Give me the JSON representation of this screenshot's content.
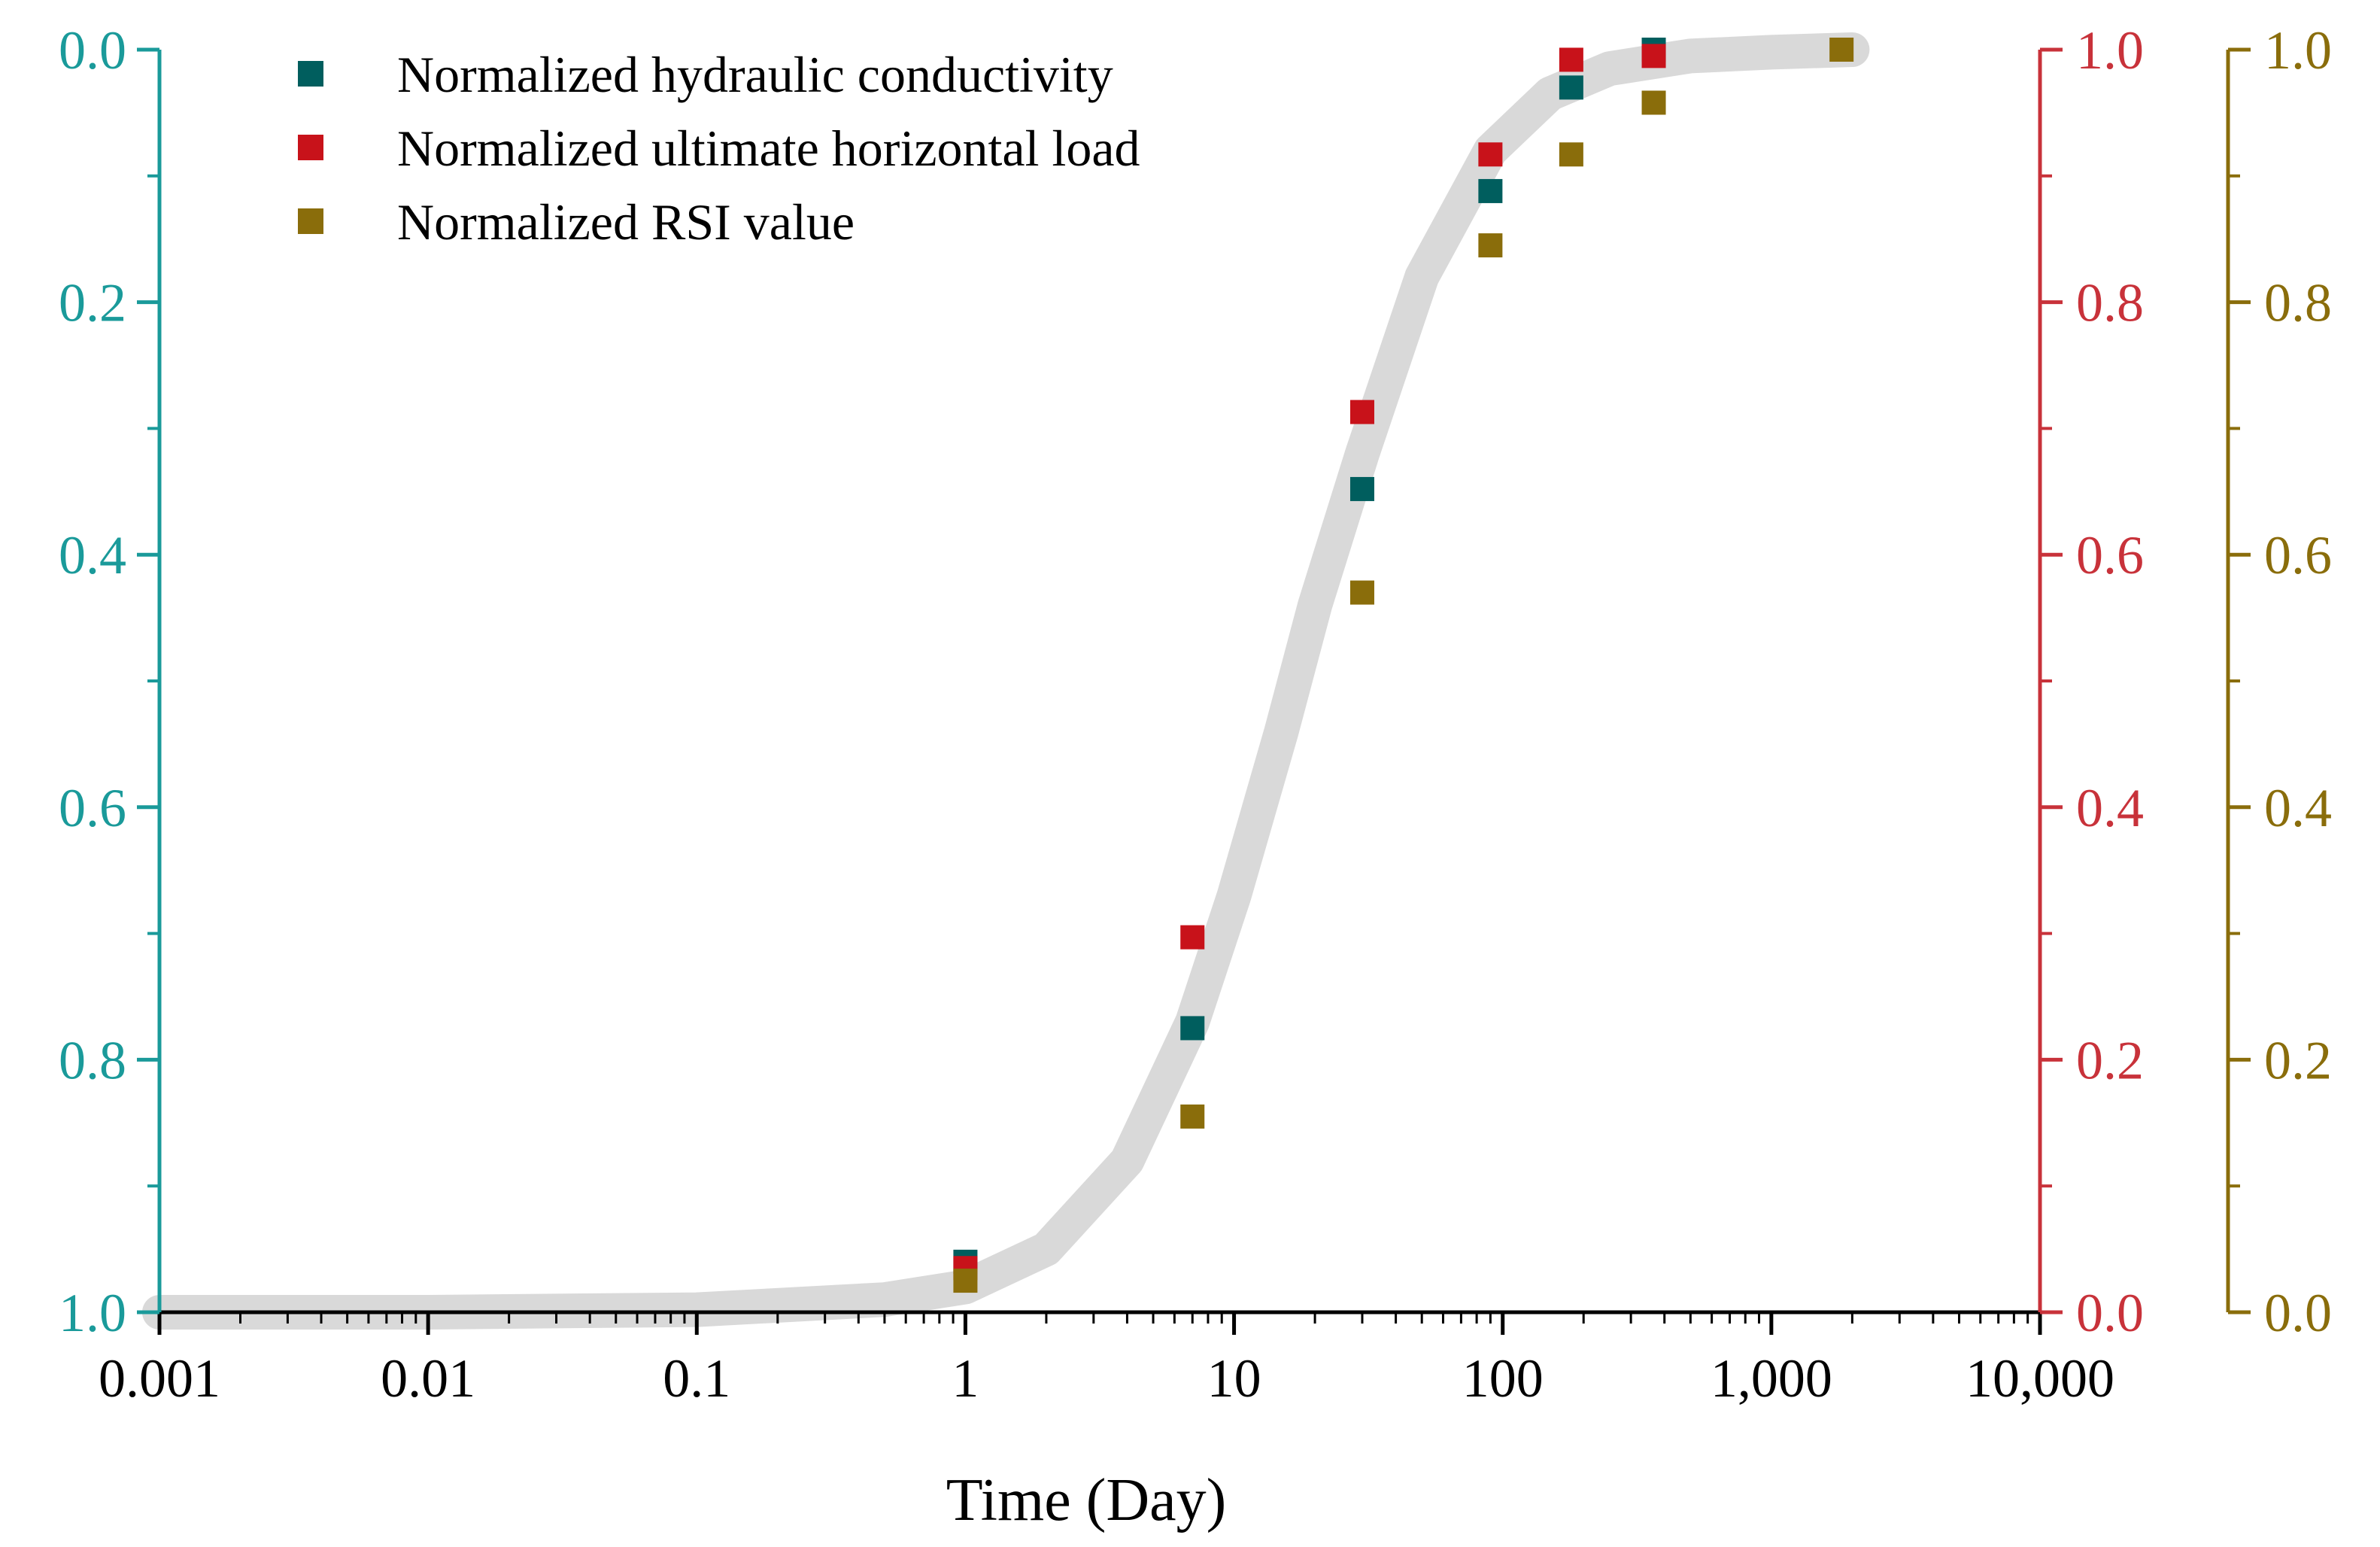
{
  "chart_data": {
    "type": "scatter",
    "title": "",
    "xlabel": "Time (Day)",
    "xscale": "log",
    "xlim": [
      0.001,
      10000
    ],
    "x_ticks": [
      0.001,
      0.01,
      0.1,
      1,
      10,
      100,
      1000,
      10000
    ],
    "x_tick_labels": [
      "0.001",
      "0.01",
      "0.1",
      "1",
      "10",
      "100",
      "1,000",
      "10,000"
    ],
    "axes": {
      "left": {
        "range_top": 0.0,
        "range_bottom": 1.0,
        "tick_labels": [
          "0.0",
          "0.2",
          "0.4",
          "0.6",
          "0.8",
          "1.0"
        ],
        "color": "#1a9a9a"
      },
      "right1": {
        "range_top": 1.0,
        "range_bottom": 0.0,
        "tick_labels": [
          "1.0",
          "0.8",
          "0.6",
          "0.4",
          "0.2",
          "0.0"
        ],
        "color": "#c8323a"
      },
      "right2": {
        "range_top": 1.0,
        "range_bottom": 0.0,
        "tick_labels": [
          "1.0",
          "0.8",
          "0.6",
          "0.4",
          "0.2",
          "0.0"
        ],
        "color": "#8a6d0b"
      }
    },
    "legend_position": "top-left",
    "trend_band": {
      "description_color": "#d9d9d9",
      "x": [
        0.001,
        0.01,
        0.1,
        0.5,
        1,
        2,
        4,
        7,
        10,
        15,
        20,
        30,
        50,
        90,
        150,
        250,
        500,
        1000,
        2000
      ],
      "y_normalized": [
        0.0,
        0.0,
        0.002,
        0.01,
        0.02,
        0.05,
        0.12,
        0.23,
        0.33,
        0.46,
        0.56,
        0.68,
        0.82,
        0.92,
        0.965,
        0.985,
        0.995,
        0.998,
        1.0
      ]
    },
    "series": [
      {
        "name": "Normalized hydraulic conductivity",
        "color": "#005e5e",
        "axis": "left",
        "x": [
          1,
          7,
          30,
          90,
          180,
          365
        ],
        "y": [
          0.96,
          0.775,
          0.348,
          0.112,
          0.03,
          0.0
        ]
      },
      {
        "name": "Normalized ultimate horizontal load",
        "color": "#c8121a",
        "axis": "right1",
        "x": [
          1,
          7,
          30,
          90,
          180,
          365
        ],
        "y": [
          0.035,
          0.297,
          0.713,
          0.917,
          0.992,
          0.995
        ]
      },
      {
        "name": "Normalized RSI value",
        "color": "#8a6d0b",
        "axis": "right2",
        "x": [
          1,
          7,
          30,
          90,
          180,
          365,
          1825
        ],
        "y": [
          0.025,
          0.155,
          0.57,
          0.845,
          0.917,
          0.958,
          1.0
        ]
      }
    ]
  }
}
